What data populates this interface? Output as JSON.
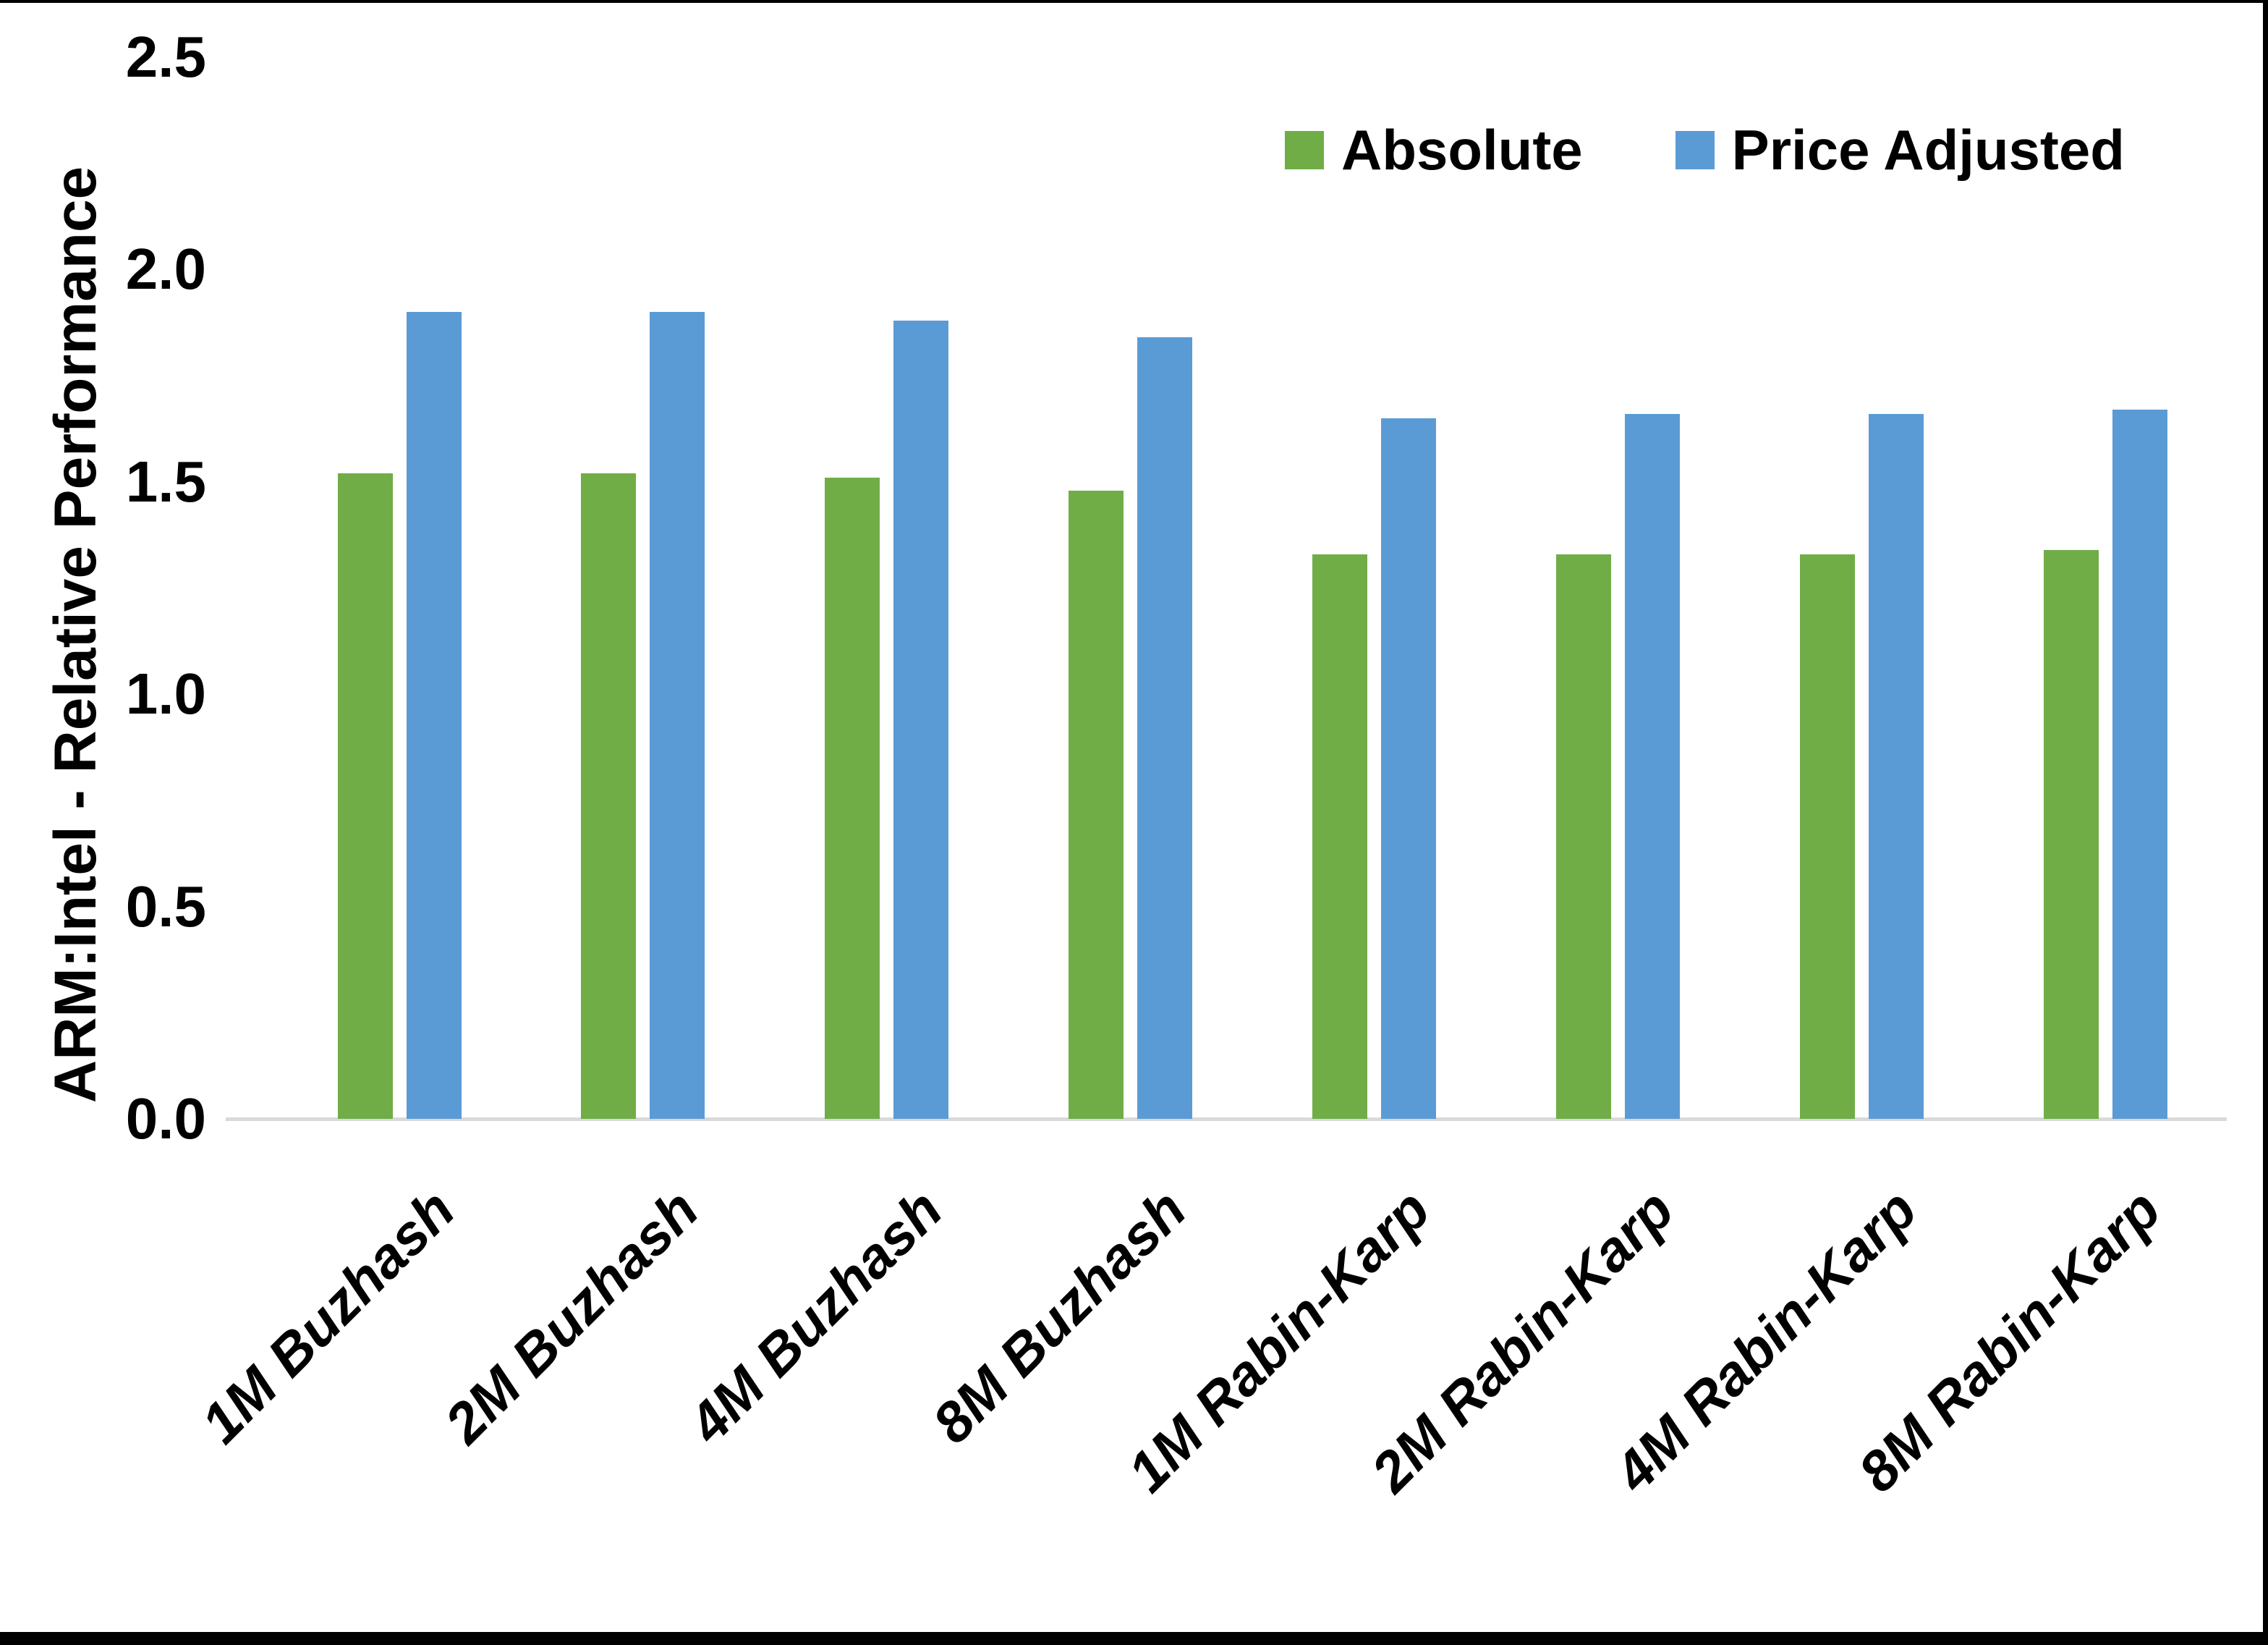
{
  "chart_data": {
    "type": "bar",
    "title": "",
    "xlabel": "",
    "ylabel": "ARM:Intel - Relative Performance",
    "ylim": [
      0,
      2.5
    ],
    "ytick_step": 0.5,
    "yticks": [
      {
        "value": 0.0,
        "label": "0.0"
      },
      {
        "value": 0.5,
        "label": "0.5"
      },
      {
        "value": 1.0,
        "label": "1.0"
      },
      {
        "value": 1.5,
        "label": "1.5"
      },
      {
        "value": 2.0,
        "label": "2.0"
      },
      {
        "value": 2.5,
        "label": "2.5"
      }
    ],
    "grid": false,
    "legend_position": "top-right-inside",
    "categories": [
      "1M Buzhash",
      "2M Buzhash",
      "4M Buzhash",
      "8M Buzhash",
      "1M Rabin-Karp",
      "2M Rabin-Karp",
      "4M Rabin-Karp",
      "8M Rabin-Karp"
    ],
    "series": [
      {
        "name": "Absolute",
        "color": "#70AD47",
        "values": [
          1.52,
          1.52,
          1.51,
          1.48,
          1.33,
          1.33,
          1.33,
          1.34
        ]
      },
      {
        "name": "Price Adjusted",
        "color": "#5B9BD5",
        "values": [
          1.9,
          1.9,
          1.88,
          1.84,
          1.65,
          1.66,
          1.66,
          1.67
        ]
      }
    ]
  },
  "colors": {
    "background": "#FFFFFF",
    "frame_border": "#000000",
    "axis_line": "#D9D9D9",
    "text": "#000000"
  }
}
